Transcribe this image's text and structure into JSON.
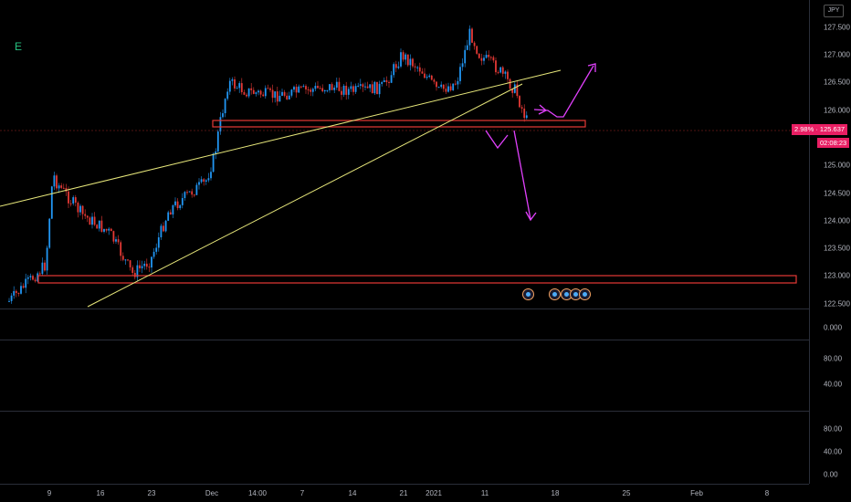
{
  "chart": {
    "currency_label": "JPY",
    "indicator_label": "E",
    "price_badge": "2.98% · 125.637",
    "time_badge": "02:08:23",
    "price_ticks": [
      "127.500",
      "127.000",
      "126.500",
      "126.000",
      "125.000",
      "124.500",
      "124.000",
      "123.500",
      "123.000",
      "122.500"
    ],
    "time_labels": [
      "9",
      "16",
      "23",
      "Dec",
      "14:00",
      "7",
      "14",
      "21",
      "2021",
      "11",
      "18",
      "25",
      "Feb",
      "8"
    ],
    "colors": {
      "up": "#2196f3",
      "down": "#e53935",
      "trendline": "#e6e67a",
      "arrow": "#e040fb",
      "zone": "#e53935",
      "badge": "#e91e63",
      "indicator": "#26c281"
    }
  },
  "osc1": {
    "ticks": [
      "0.000"
    ]
  },
  "osc2": {
    "ticks": [
      "80.00",
      "40.00"
    ]
  },
  "osc3": {
    "ticks": [
      "80.00",
      "40.00",
      "0.00"
    ]
  }
}
